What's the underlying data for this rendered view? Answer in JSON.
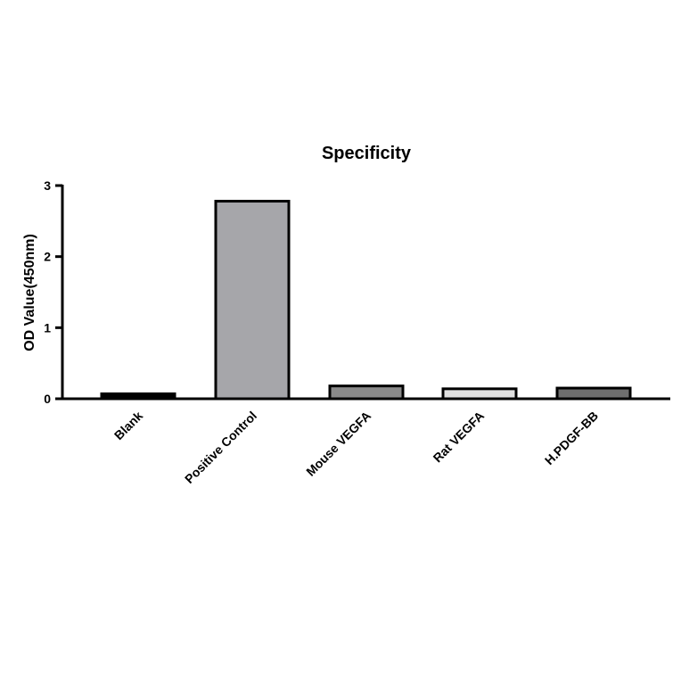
{
  "chart_data": {
    "type": "bar",
    "title": "Specificity",
    "xlabel": "",
    "ylabel": "OD Value(450nm)",
    "ylim": [
      0,
      3
    ],
    "yticks": [
      0,
      1,
      2,
      3
    ],
    "categories": [
      "Blank",
      "Positive Control",
      "Mouse VEGFA",
      "Rat VEGFA",
      "H.PDGF-BB"
    ],
    "values": [
      0.07,
      2.78,
      0.18,
      0.14,
      0.15
    ],
    "bar_colors": [
      "#000000",
      "#a6a6aa",
      "#8a8a8a",
      "#e0e0e0",
      "#6e6e6e"
    ],
    "grid": false,
    "legend": "none"
  }
}
